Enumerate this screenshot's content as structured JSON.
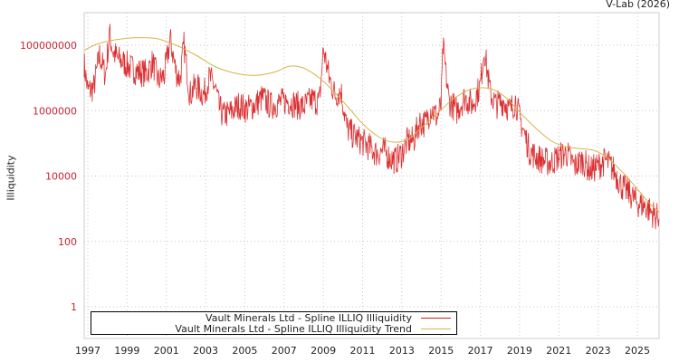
{
  "header": {
    "credit": "V-Lab (2026)"
  },
  "colors": {
    "series": "#d7191c",
    "trend": "#d9b44a",
    "grid": "#c8c8c8",
    "tick_label_y": "#cc2233",
    "axis_frame": "#cccccc"
  },
  "chart_data": {
    "type": "line",
    "title": "",
    "xlabel": "",
    "ylabel": "Illiquidity",
    "yscale": "log",
    "ylim": [
      0.3,
      400000000
    ],
    "xlim": [
      1996.8,
      2026.1
    ],
    "grid": true,
    "legend_position": "lower-left (inside plot)",
    "x_ticks": [
      "1997",
      "1999",
      "2001",
      "2003",
      "2005",
      "2007",
      "2009",
      "2011",
      "2013",
      "2015",
      "2017",
      "2019",
      "2021",
      "2023",
      "2025"
    ],
    "y_ticks": [
      "1",
      "100",
      "10000",
      "1000000",
      "100000000"
    ],
    "series": [
      {
        "name": "Vault Minerals Ltd - Spline ILLIQ Illiquidity",
        "x": [
          1996.8,
          1997.0,
          1997.3,
          1997.6,
          1997.9,
          1998.1,
          1998.3,
          1998.5,
          1998.8,
          1999.2,
          1999.6,
          2000.0,
          2000.3,
          2000.6,
          2000.9,
          2001.2,
          2001.5,
          2001.7,
          2001.9,
          2002.2,
          2002.5,
          2002.9,
          2003.2,
          2003.5,
          2003.7,
          2003.9,
          2004.3,
          2004.7,
          2005.1,
          2005.5,
          2005.9,
          2006.3,
          2006.8,
          2007.2,
          2007.6,
          2008.0,
          2008.4,
          2008.8,
          2009.0,
          2009.3,
          2009.6,
          2009.9,
          2010.2,
          2010.5,
          2010.9,
          2011.3,
          2011.7,
          2012.1,
          2012.4,
          2012.7,
          2013.0,
          2013.3,
          2013.6,
          2013.9,
          2014.2,
          2014.5,
          2014.8,
          2015.0,
          2015.1,
          2015.4,
          2015.8,
          2016.2,
          2016.6,
          2017.0,
          2017.2,
          2017.5,
          2017.8,
          2018.2,
          2018.5,
          2018.8,
          2019.0,
          2019.2,
          2019.5,
          2019.8,
          2020.2,
          2020.6,
          2021.0,
          2021.4,
          2021.8,
          2022.2,
          2022.6,
          2023.0,
          2023.4,
          2023.8,
          2024.2,
          2024.6,
          2025.0,
          2025.4,
          2025.8,
          2026.1
        ],
        "values": [
          30000000,
          4000000,
          5000000,
          50000000,
          12000000,
          220000000,
          60000000,
          40000000,
          30000000,
          20000000,
          15000000,
          14000000,
          30000000,
          8000000,
          12000000,
          150000000,
          15000000,
          9000000,
          100000000,
          3000000,
          6000000,
          3000000,
          10000000,
          5000000,
          1200000,
          700000,
          900000,
          1500000,
          1100000,
          1500000,
          2500000,
          1400000,
          1800000,
          2000000,
          1500000,
          1300000,
          2200000,
          1800000,
          80000000,
          10000000,
          3000000,
          4000000,
          300000,
          180000,
          120000,
          80000,
          50000,
          60000,
          35000,
          30000,
          50000,
          120000,
          120000,
          450000,
          400000,
          1200000,
          600000,
          1500000,
          90000000,
          2000000,
          1000000,
          2500000,
          1500000,
          6000000,
          80000000,
          3500000,
          1500000,
          2000000,
          1000000,
          2000000,
          600000,
          250000,
          60000,
          40000,
          30000,
          25000,
          40000,
          50000,
          20000,
          30000,
          15000,
          20000,
          30000,
          15000,
          5000,
          3000,
          1500,
          1200,
          700,
          500
        ],
        "color": "#d7191c"
      },
      {
        "name": "Vault Minerals Ltd - Spline ILLIQ Illiquidity Trend",
        "x": [
          1996.8,
          1997.5,
          1998.5,
          1999.5,
          2000.5,
          2001.5,
          2002.5,
          2003.5,
          2004.5,
          2005.5,
          2006.5,
          2007.3,
          2008.0,
          2008.8,
          2009.5,
          2010.3,
          2011.0,
          2011.8,
          2012.5,
          2013.3,
          2014.0,
          2014.8,
          2015.5,
          2016.3,
          2016.9,
          2017.6,
          2018.3,
          2019.0,
          2019.8,
          2020.6,
          2021.3,
          2022.0,
          2022.8,
          2023.5,
          2024.3,
          2025.0,
          2025.6,
          2026.1
        ],
        "values": [
          70000000,
          110000000,
          150000000,
          170000000,
          160000000,
          100000000,
          50000000,
          22000000,
          14000000,
          12000000,
          15000000,
          23000000,
          20000000,
          10000000,
          4000000,
          1200000,
          400000,
          160000,
          110000,
          130000,
          300000,
          800000,
          2000000,
          4000000,
          5000000,
          4500000,
          2500000,
          900000,
          300000,
          120000,
          80000,
          70000,
          60000,
          35000,
          12000,
          4000,
          1500,
          800
        ],
        "color": "#d9b44a"
      }
    ]
  },
  "legend": {
    "items": [
      {
        "label": "Vault Minerals Ltd - Spline ILLIQ Illiquidity",
        "color": "#d7191c"
      },
      {
        "label": "Vault Minerals Ltd - Spline ILLIQ Illiquidity Trend",
        "color": "#d9b44a"
      }
    ]
  }
}
